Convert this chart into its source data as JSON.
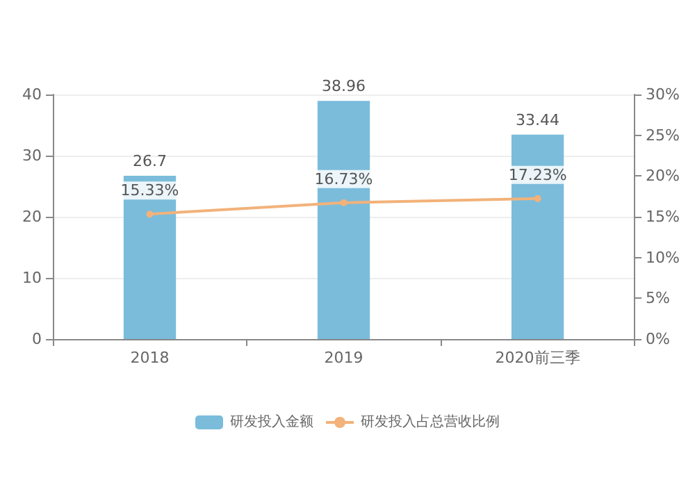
{
  "chart_data": {
    "type": "bar",
    "categories": [
      "2018",
      "2019",
      "2020前三季"
    ],
    "series": [
      {
        "name": "研发投入金额",
        "color": "#7bbcdb",
        "values": [
          26.7,
          38.96,
          33.44
        ],
        "value_labels": [
          "26.7",
          "38.96",
          "33.44"
        ]
      },
      {
        "name": "研发投入占总营收比例",
        "type": "line",
        "axis": "y2",
        "color": "#f2b27a",
        "values": [
          15.33,
          16.73,
          17.23
        ],
        "value_labels": [
          "15.33%",
          "16.73%",
          "17.23%"
        ]
      }
    ],
    "ylim": [
      0,
      40
    ],
    "yticks": [
      0,
      10,
      20,
      30,
      40
    ],
    "y2lim": [
      0,
      30
    ],
    "y2ticks": [
      {
        "value": 0,
        "label": "0%"
      },
      {
        "value": 5,
        "label": "5%"
      },
      {
        "value": 10,
        "label": "10%"
      },
      {
        "value": 15,
        "label": "15%"
      },
      {
        "value": 20,
        "label": "20%"
      },
      {
        "value": 25,
        "label": "25%"
      },
      {
        "value": 30,
        "label": "30%"
      }
    ],
    "grid": "y",
    "legend": "bottom",
    "marker": "circle"
  }
}
